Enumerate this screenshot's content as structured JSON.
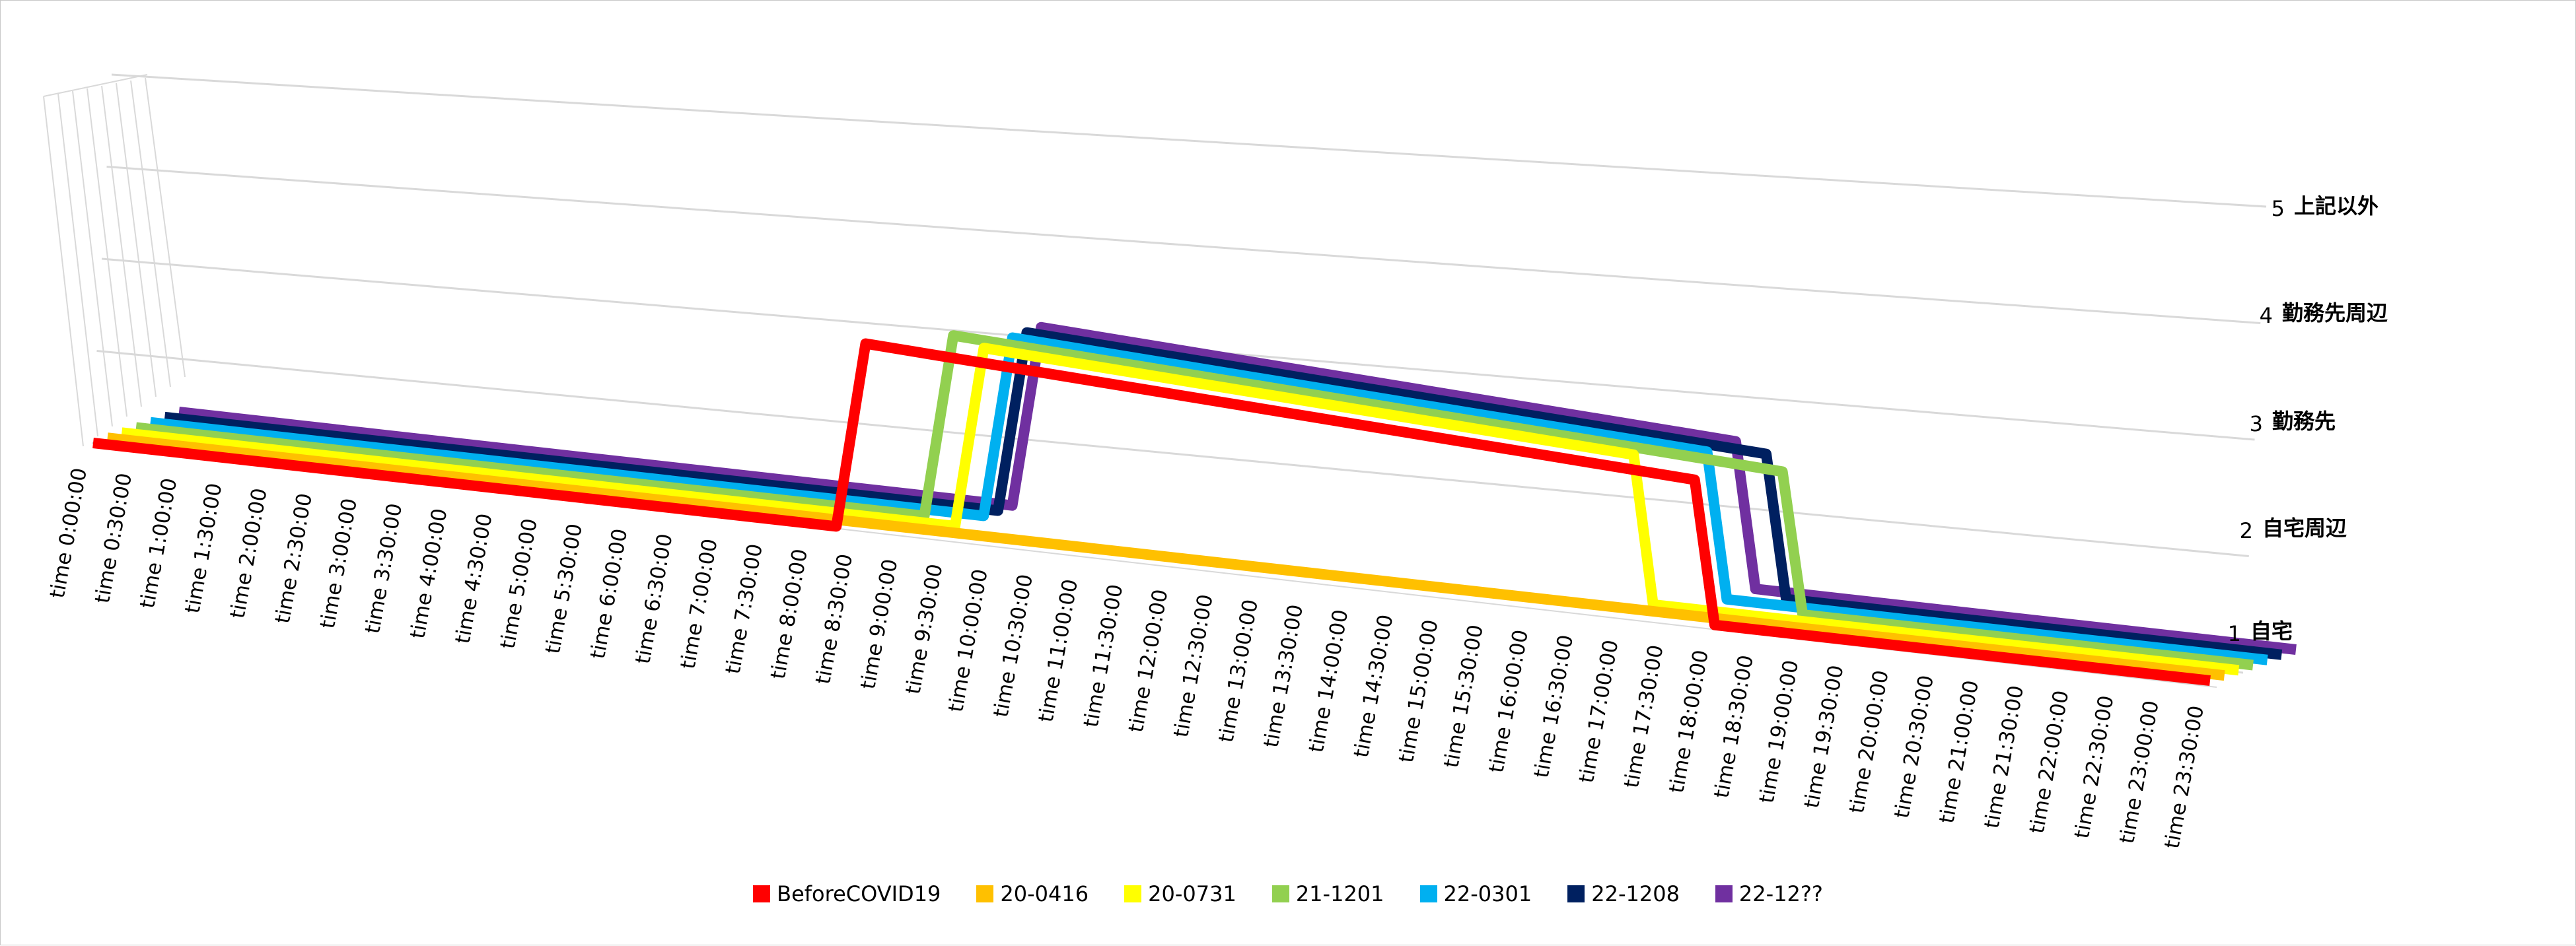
{
  "chart_data": {
    "type": "line",
    "subtype": "3d-line",
    "title": "",
    "xlabel": "",
    "ylabel": "",
    "x": [
      "time 0:00:00",
      "time 0:30:00",
      "time 1:00:00",
      "time 1:30:00",
      "time 2:00:00",
      "time 2:30:00",
      "time 3:00:00",
      "time 3:30:00",
      "time 4:00:00",
      "time 4:30:00",
      "time 5:00:00",
      "time 5:30:00",
      "time 6:00:00",
      "time 6:30:00",
      "time 7:00:00",
      "time 7:30:00",
      "time 8:00:00",
      "time 8:30:00",
      "time 9:00:00",
      "time 9:30:00",
      "time 10:00:00",
      "time 10:30:00",
      "time 11:00:00",
      "time 11:30:00",
      "time 12:00:00",
      "time 12:30:00",
      "time 13:00:00",
      "time 13:30:00",
      "time 14:00:00",
      "time 14:30:00",
      "time 15:00:00",
      "time 15:30:00",
      "time 16:00:00",
      "time 16:30:00",
      "time 17:00:00",
      "time 17:30:00",
      "time 18:00:00",
      "time 18:30:00",
      "time 19:00:00",
      "time 19:30:00",
      "time 20:00:00",
      "time 20:30:00",
      "time 21:00:00",
      "time 21:30:00",
      "time 22:00:00",
      "time 22:30:00",
      "time 23:00:00",
      "time 23:30:00"
    ],
    "value_axis": {
      "min": 1,
      "max": 5,
      "labels": [
        {
          "value": 1,
          "num": "1",
          "text": "自宅"
        },
        {
          "value": 2,
          "num": "2",
          "text": "自宅周辺"
        },
        {
          "value": 3,
          "num": "3",
          "text": "勤務先"
        },
        {
          "value": 4,
          "num": "4",
          "text": "勤務先周辺"
        },
        {
          "value": 5,
          "num": "5",
          "text": "上記以外"
        }
      ]
    },
    "grid": true,
    "legend_position": "bottom",
    "series": [
      {
        "name": "BeforeCOVID19",
        "color": "#FF0000",
        "start": 8.5,
        "end": 18.0,
        "values": [
          1,
          1,
          1,
          1,
          1,
          1,
          1,
          1,
          1,
          1,
          1,
          1,
          1,
          1,
          1,
          1,
          1,
          3,
          3,
          3,
          3,
          3,
          3,
          3,
          3,
          3,
          3,
          3,
          3,
          3,
          3,
          3,
          3,
          3,
          3,
          3,
          1,
          1,
          1,
          1,
          1,
          1,
          1,
          1,
          1,
          1,
          1,
          1
        ]
      },
      {
        "name": "20-0416",
        "color": "#FFC000",
        "start": null,
        "end": null,
        "values": [
          1,
          1,
          1,
          1,
          1,
          1,
          1,
          1,
          1,
          1,
          1,
          1,
          1,
          1,
          1,
          1,
          1,
          1,
          1,
          1,
          1,
          1,
          1,
          1,
          1,
          1,
          1,
          1,
          1,
          1,
          1,
          1,
          1,
          1,
          1,
          1,
          1,
          1,
          1,
          1,
          1,
          1,
          1,
          1,
          1,
          1,
          1,
          1
        ]
      },
      {
        "name": "20-0731",
        "color": "#FFFF00",
        "start": 9.5,
        "end": 17.0,
        "values": [
          1,
          1,
          1,
          1,
          1,
          1,
          1,
          1,
          1,
          1,
          1,
          1,
          1,
          1,
          1,
          1,
          1,
          1,
          1,
          3,
          3,
          3,
          3,
          3,
          3,
          3,
          3,
          3,
          3,
          3,
          3,
          3,
          3,
          3,
          1,
          1,
          1,
          1,
          1,
          1,
          1,
          1,
          1,
          1,
          1,
          1,
          1,
          1
        ]
      },
      {
        "name": "21-1201",
        "color": "#92D050",
        "start": 9.0,
        "end": 18.5,
        "values": [
          1,
          1,
          1,
          1,
          1,
          1,
          1,
          1,
          1,
          1,
          1,
          1,
          1,
          1,
          1,
          1,
          1,
          1,
          3,
          3,
          3,
          3,
          3,
          3,
          3,
          3,
          3,
          3,
          3,
          3,
          3,
          3,
          3,
          3,
          3,
          3,
          3,
          1,
          1,
          1,
          1,
          1,
          1,
          1,
          1,
          1,
          1,
          1
        ]
      },
      {
        "name": "22-0301",
        "color": "#00B0F0",
        "start": 9.5,
        "end": 17.5,
        "values": [
          1,
          1,
          1,
          1,
          1,
          1,
          1,
          1,
          1,
          1,
          1,
          1,
          1,
          1,
          1,
          1,
          1,
          1,
          1,
          3,
          3,
          3,
          3,
          3,
          3,
          3,
          3,
          3,
          3,
          3,
          3,
          3,
          3,
          3,
          3,
          1,
          1,
          1,
          1,
          1,
          1,
          1,
          1,
          1,
          1,
          1,
          1,
          1
        ]
      },
      {
        "name": "22-1208",
        "color": "#002060",
        "start": 9.5,
        "end": 18.0,
        "values": [
          1,
          1,
          1,
          1,
          1,
          1,
          1,
          1,
          1,
          1,
          1,
          1,
          1,
          1,
          1,
          1,
          1,
          1,
          1,
          3,
          3,
          3,
          3,
          3,
          3,
          3,
          3,
          3,
          3,
          3,
          3,
          3,
          3,
          3,
          3,
          3,
          1,
          1,
          1,
          1,
          1,
          1,
          1,
          1,
          1,
          1,
          1,
          1
        ]
      },
      {
        "name": "22-12??",
        "color": "#7030A0",
        "start": 9.5,
        "end": 17.5,
        "values": [
          1,
          1,
          1,
          1,
          1,
          1,
          1,
          1,
          1,
          1,
          1,
          1,
          1,
          1,
          1,
          1,
          1,
          1,
          1,
          3,
          3,
          3,
          3,
          3,
          3,
          3,
          3,
          3,
          3,
          3,
          3,
          3,
          3,
          3,
          3,
          1,
          1,
          1,
          1,
          1,
          1,
          1,
          1,
          1,
          1,
          1,
          1,
          1
        ]
      }
    ]
  }
}
